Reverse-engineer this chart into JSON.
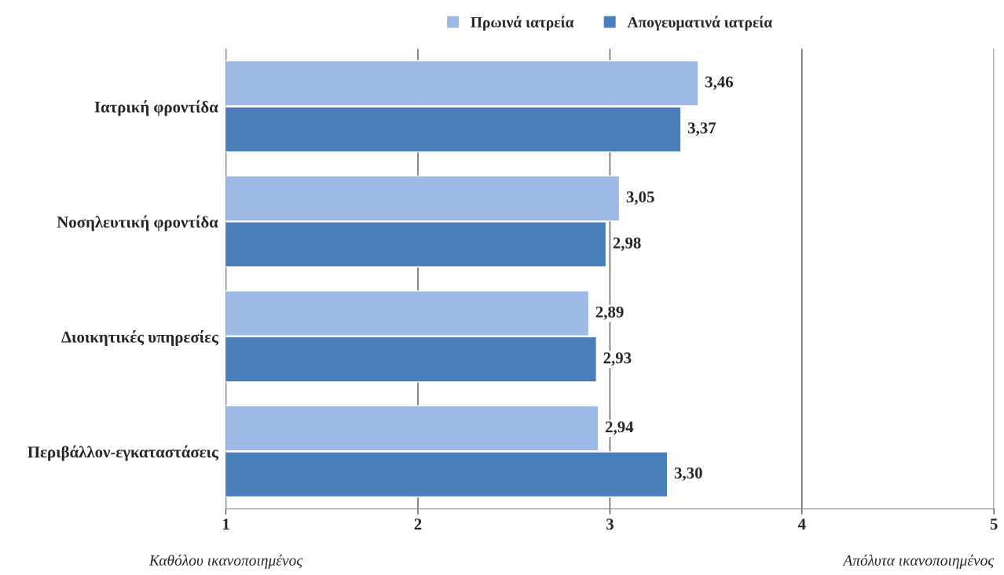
{
  "chart_data": {
    "type": "bar",
    "orientation": "horizontal",
    "categories": [
      "Ιατρική φροντίδα",
      "Νοσηλευτική φροντίδα",
      "Διοικητικές υπηρεσίες",
      "Περιβάλλον-εγκαταστάσεις"
    ],
    "series": [
      {
        "name": "Πρωινά ιατρεία",
        "color": "#9dbbe6",
        "values": [
          3.46,
          3.05,
          2.89,
          2.94
        ],
        "value_labels": [
          "3,46",
          "3,05",
          "2,89",
          "2,94"
        ]
      },
      {
        "name": "Απογευματινά ιατρεία",
        "color": "#4a7ebb",
        "values": [
          3.37,
          2.98,
          2.93,
          3.3
        ],
        "value_labels": [
          "3,37",
          "2,98",
          "2,93",
          "3,30"
        ]
      }
    ],
    "xlim": [
      1,
      5
    ],
    "xticks": [
      1,
      2,
      3,
      4,
      5
    ],
    "grid": "x",
    "legend": "top",
    "annotations": [
      "Καθόλου ικανοποιημένος",
      "Απόλυτα ικανοποιημένος"
    ]
  }
}
